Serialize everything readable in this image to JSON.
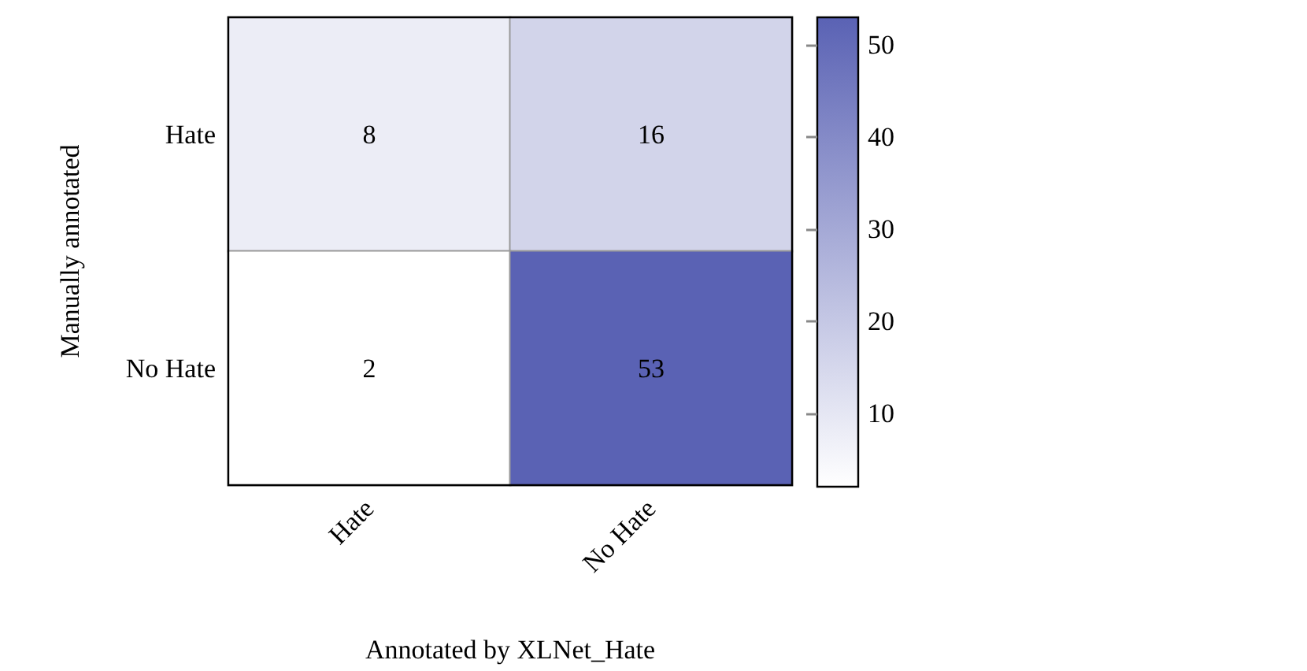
{
  "chart_data": {
    "type": "heatmap",
    "xlabel": "Annotated by XLNet_Hate",
    "ylabel": "Manually annotated",
    "categories": [
      "Hate",
      "No Hate"
    ],
    "y_categories": [
      "Hate",
      "No Hate"
    ],
    "cells": [
      [
        8,
        16
      ],
      [
        2,
        53
      ]
    ],
    "data_labels": true,
    "clim": [
      2,
      53
    ],
    "cticks": [
      10,
      20,
      30,
      40,
      50
    ]
  }
}
